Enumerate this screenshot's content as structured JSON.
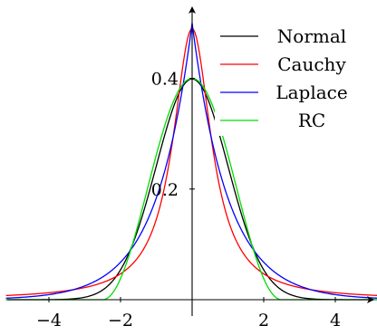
{
  "chart_data": {
    "type": "line",
    "xlim": [
      -5.2,
      5.2
    ],
    "ylim": [
      0,
      0.53
    ],
    "x_ticks": [
      -4,
      -2,
      2,
      4
    ],
    "x_tick_labels": [
      "−4",
      "−2",
      "2",
      "4"
    ],
    "y_ticks": [
      0.2,
      0.4
    ],
    "y_tick_labels": [
      "0.2",
      "0.4"
    ],
    "grid": false,
    "legend_position": "top-right",
    "series": [
      {
        "name": "Normal",
        "color": "#000000",
        "dist": "normal",
        "sigma": 1.0,
        "sample_points": [
          [
            -4,
            0.0001
          ],
          [
            -2,
            0.054
          ],
          [
            0,
            0.399
          ],
          [
            2,
            0.054
          ],
          [
            4,
            0.0001
          ]
        ]
      },
      {
        "name": "Cauchy",
        "color": "#ff0000",
        "dist": "cauchy",
        "gamma": 0.65,
        "sample_points": [
          [
            -4,
            0.0126
          ],
          [
            -2,
            0.0469
          ],
          [
            0,
            0.49
          ],
          [
            2,
            0.0469
          ],
          [
            4,
            0.0126
          ]
        ]
      },
      {
        "name": "Laplace",
        "color": "#0000ff",
        "dist": "laplace",
        "b": 1.0,
        "sample_points": [
          [
            -4,
            0.0092
          ],
          [
            -2,
            0.0677
          ],
          [
            0,
            0.5
          ],
          [
            2,
            0.0677
          ],
          [
            4,
            0.0092
          ]
        ]
      },
      {
        "name": "RC",
        "color": "#00dd00",
        "dist": "raised-cosine",
        "half_width": 2.5,
        "sample_points": [
          [
            -2.5,
            0
          ],
          [
            -2,
            0.0191
          ],
          [
            0,
            0.4
          ],
          [
            2,
            0.0191
          ],
          [
            2.5,
            0
          ]
        ]
      }
    ]
  }
}
